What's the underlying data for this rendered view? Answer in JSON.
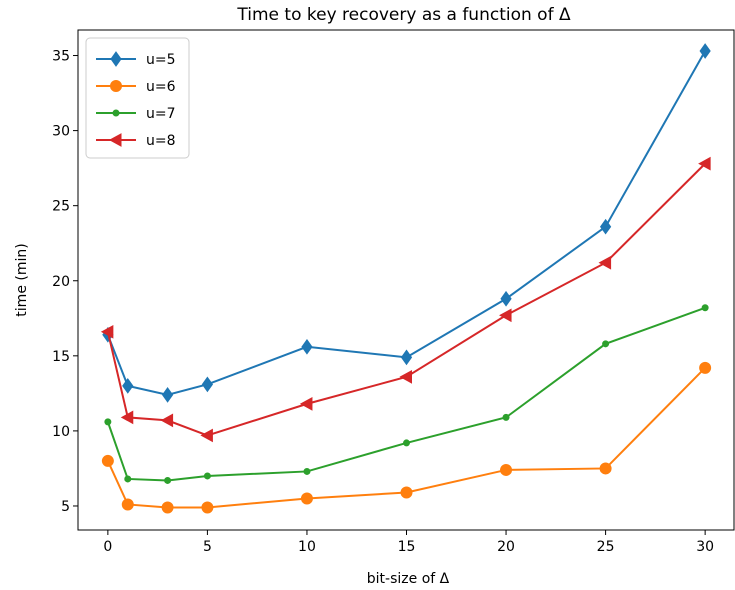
{
  "chart_data": {
    "type": "line",
    "title": "Time to key recovery as a function of Δ",
    "xlabel": "bit-size of Δ",
    "ylabel": "time (min)",
    "x": [
      0,
      1,
      3,
      5,
      10,
      15,
      20,
      25,
      30
    ],
    "xlim": [
      -1.5,
      31.5
    ],
    "ylim": [
      3.4,
      36.7
    ],
    "xticks": [
      0,
      5,
      10,
      15,
      20,
      25,
      30
    ],
    "yticks": [
      5,
      10,
      15,
      20,
      25,
      30,
      35
    ],
    "grid": false,
    "legend_position": "upper-left",
    "series": [
      {
        "name": "u=5",
        "color": "#1f77b4",
        "marker": "diamond",
        "values": [
          16.4,
          13.0,
          12.4,
          13.1,
          15.6,
          14.9,
          18.8,
          23.6,
          35.3
        ]
      },
      {
        "name": "u=6",
        "color": "#ff7f0e",
        "marker": "circle",
        "values": [
          8.0,
          5.1,
          4.9,
          4.9,
          5.5,
          5.9,
          7.4,
          7.5,
          14.2
        ]
      },
      {
        "name": "u=7",
        "color": "#2ca02c",
        "marker": "point",
        "values": [
          10.6,
          6.8,
          6.7,
          7.0,
          7.3,
          9.2,
          10.9,
          15.8,
          18.2
        ]
      },
      {
        "name": "u=8",
        "color": "#d62728",
        "marker": "triangle-left",
        "values": [
          16.6,
          10.9,
          10.7,
          9.7,
          11.8,
          13.6,
          17.7,
          21.2,
          27.8
        ]
      }
    ]
  }
}
